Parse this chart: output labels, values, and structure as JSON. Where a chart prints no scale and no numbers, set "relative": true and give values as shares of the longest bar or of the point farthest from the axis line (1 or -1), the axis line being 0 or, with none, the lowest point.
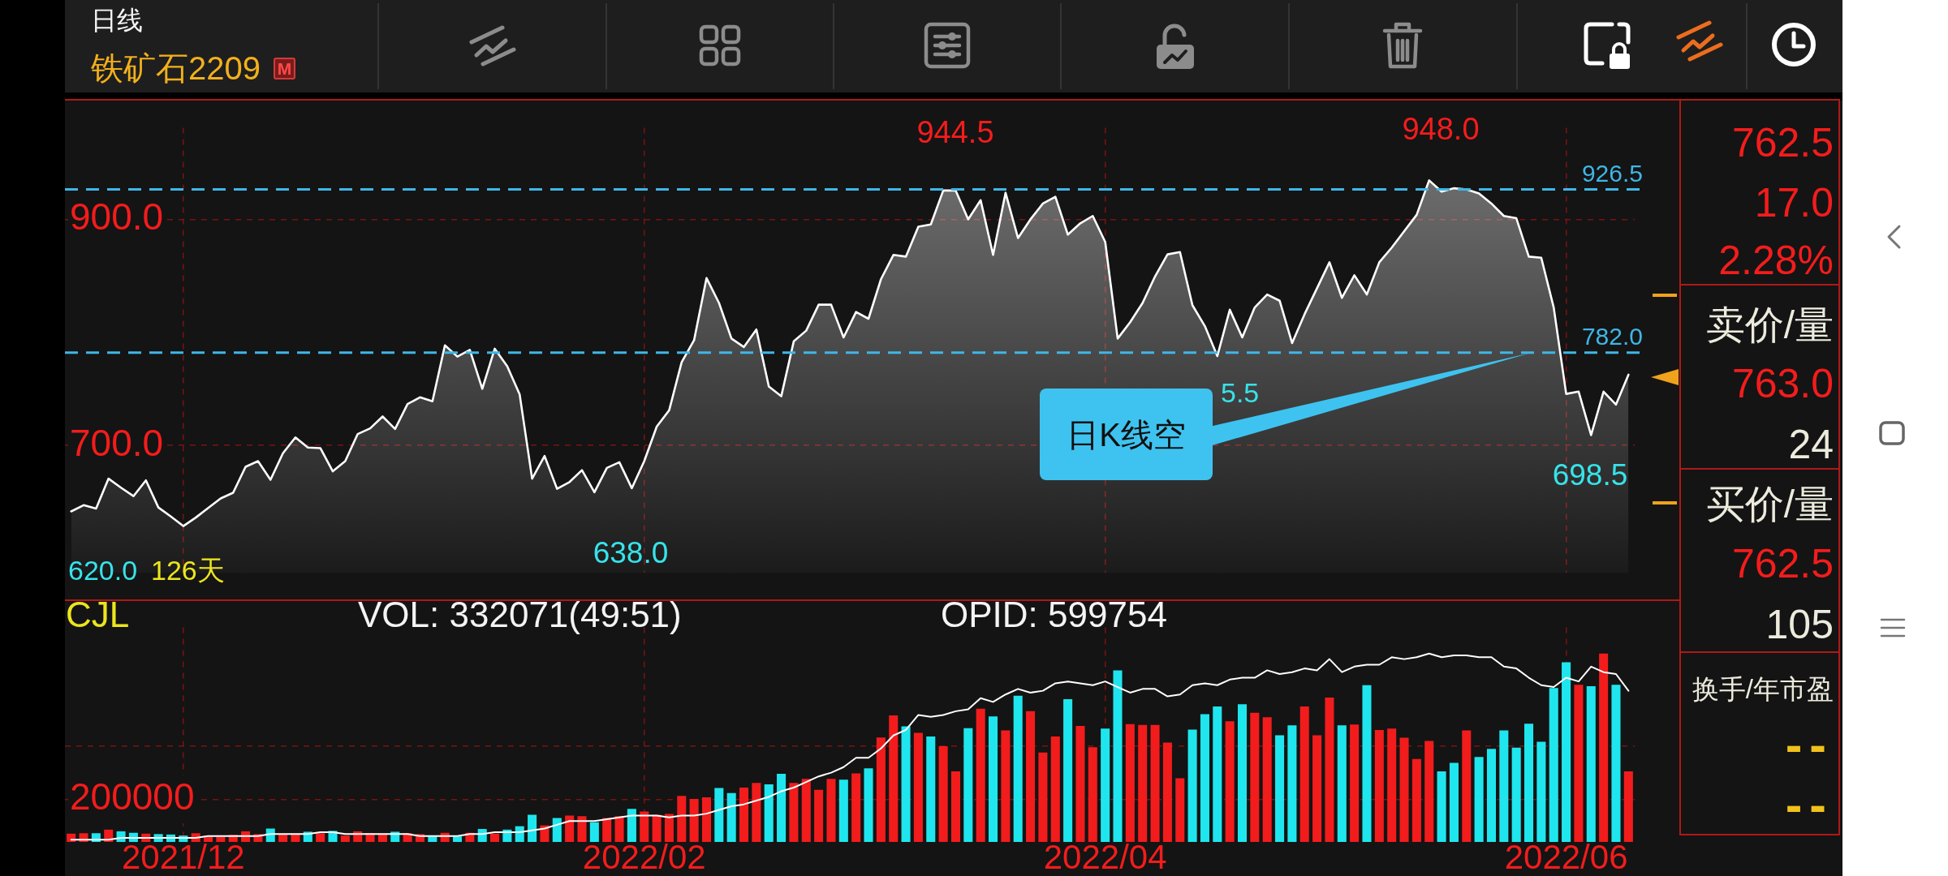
{
  "chart_data": [
    {
      "type": "area",
      "title": "日线",
      "subtitle": "铁矿石2209",
      "categories": [
        null,
        null,
        null,
        null,
        null,
        null,
        null,
        null,
        null,
        "2021/12",
        null,
        null,
        null,
        null,
        null,
        null,
        null,
        null,
        null,
        null,
        null,
        null,
        null,
        null,
        null,
        null,
        null,
        null,
        null,
        null,
        null,
        null,
        null,
        null,
        null,
        null,
        null,
        null,
        null,
        null,
        null,
        null,
        null,
        null,
        null,
        null,
        "2022/02",
        null,
        null,
        null,
        null,
        null,
        null,
        null,
        null,
        null,
        null,
        null,
        null,
        null,
        null,
        null,
        null,
        null,
        null,
        null,
        null,
        null,
        null,
        null,
        null,
        null,
        null,
        null,
        null,
        null,
        null,
        null,
        null,
        null,
        null,
        null,
        null,
        "2022/04",
        null,
        null,
        null,
        null,
        null,
        null,
        null,
        null,
        null,
        null,
        null,
        null,
        null,
        null,
        null,
        null,
        null,
        null,
        null,
        null,
        null,
        null,
        null,
        null,
        null,
        null,
        null,
        null,
        null,
        null,
        null,
        null,
        null,
        null,
        null,
        null,
        "2022/06",
        null,
        null,
        null,
        null,
        null
      ],
      "series": [
        {
          "color": "#ffffff",
          "values": [
            641.5,
            647,
            644,
            670.5,
            662.5,
            655,
            669,
            645,
            637,
            628.5,
            636,
            644.5,
            653,
            658,
            681,
            686,
            669.5,
            693,
            707,
            698,
            697.5,
            677,
            686,
            710,
            715,
            725.5,
            714.5,
            736.5,
            742.5,
            739,
            788.5,
            778.5,
            784.5,
            750,
            785.5,
            770,
            745,
            670.5,
            690.5,
            661.5,
            667.5,
            678,
            658.5,
            680,
            685,
            662,
            686,
            716.5,
            731,
            773.5,
            793,
            848,
            826,
            794.5,
            787,
            802.5,
            752,
            743.5,
            792,
            801.5,
            824.5,
            824.5,
            795.5,
            818,
            812,
            847,
            868.5,
            867,
            893.5,
            895.5,
            925.5,
            925.5,
            900,
            917,
            868.5,
            923.5,
            883.5,
            900,
            914,
            920,
            886.5,
            896.5,
            903,
            880,
            794.5,
            809,
            826,
            849.5,
            869,
            871,
            824,
            805.5,
            779,
            820,
            795.5,
            822,
            833.5,
            828,
            790.5,
            816,
            839,
            862,
            830.5,
            850.5,
            833.5,
            862,
            875,
            889.5,
            904,
            934.5,
            924.5,
            927.5,
            926.5,
            923,
            914,
            903,
            901,
            867,
            866,
            822,
            745.5,
            747.5,
            709,
            747.5,
            736,
            762.5
          ]
        }
      ],
      "ylim": [
        587,
        981
      ],
      "yticks": [
        {
          "value": 700,
          "label": "700.0"
        },
        {
          "value": 900,
          "label": "900.0"
        }
      ],
      "grid": true,
      "tick_labels": "y",
      "ref_lines": [
        {
          "axis": "y",
          "value": 926.5,
          "label": "926.5",
          "color": "#3fb6e6",
          "line_style": "dashed"
        },
        {
          "axis": "y",
          "value": 782.0,
          "label": "782.0",
          "color": "#3fb6e6",
          "line_style": "dashed"
        }
      ],
      "annotations": [
        "M",
        "944.5",
        "948.0",
        "638.0",
        "698.5",
        "5.5",
        "620.0",
        "126天",
        "日K线空"
      ]
    },
    {
      "type": "bar",
      "categories": [
        null,
        null,
        null,
        null,
        null,
        null,
        null,
        null,
        null,
        "2021/12",
        null,
        null,
        null,
        null,
        null,
        null,
        null,
        null,
        null,
        null,
        null,
        null,
        null,
        null,
        null,
        null,
        null,
        null,
        null,
        null,
        null,
        null,
        null,
        null,
        null,
        null,
        null,
        null,
        null,
        null,
        null,
        null,
        null,
        null,
        null,
        null,
        "2022/02",
        null,
        null,
        null,
        null,
        null,
        null,
        null,
        null,
        null,
        null,
        null,
        null,
        null,
        null,
        null,
        null,
        null,
        null,
        null,
        null,
        null,
        null,
        null,
        null,
        null,
        null,
        null,
        null,
        null,
        null,
        null,
        null,
        null,
        null,
        null,
        null,
        "2022/04",
        null,
        null,
        null,
        null,
        null,
        null,
        null,
        null,
        null,
        null,
        null,
        null,
        null,
        null,
        null,
        null,
        null,
        null,
        null,
        null,
        null,
        null,
        null,
        null,
        null,
        null,
        null,
        null,
        null,
        null,
        null,
        null,
        null,
        null,
        null,
        null,
        "2022/06",
        null,
        null,
        null,
        null,
        null
      ],
      "series": [
        {
          "colors": [
            "#f21c1c",
            "#f21c1c",
            "#1fe6ee",
            "#f21c1c",
            "#1fe6ee",
            "#1fe6ee",
            "#f21c1c",
            "#1fe6ee",
            "#1fe6ee",
            "#1fe6ee",
            "#f21c1c",
            "#f21c1c",
            "#f21c1c",
            "#f21c1c",
            "#f21c1c",
            "#f21c1c",
            "#1fe6ee",
            "#f21c1c",
            "#f21c1c",
            "#1fe6ee",
            "#f21c1c",
            "#1fe6ee",
            "#f21c1c",
            "#f21c1c",
            "#f21c1c",
            "#f21c1c",
            "#1fe6ee",
            "#f21c1c",
            "#f21c1c",
            "#1fe6ee",
            "#f21c1c",
            "#1fe6ee",
            "#f21c1c",
            "#1fe6ee",
            "#f21c1c",
            "#1fe6ee",
            "#1fe6ee",
            "#1fe6ee",
            "#f21c1c",
            "#1fe6ee",
            "#f21c1c",
            "#f21c1c",
            "#1fe6ee",
            "#f21c1c",
            "#f21c1c",
            "#1fe6ee",
            "#f21c1c",
            "#f21c1c",
            "#f21c1c",
            "#f21c1c",
            "#f21c1c",
            "#f21c1c",
            "#1fe6ee",
            "#1fe6ee",
            "#f21c1c",
            "#f21c1c",
            "#1fe6ee",
            "#1fe6ee",
            "#f21c1c",
            "#f21c1c",
            "#f21c1c",
            "#f21c1c",
            "#1fe6ee",
            "#f21c1c",
            "#1fe6ee",
            "#f21c1c",
            "#f21c1c",
            "#1fe6ee",
            "#f21c1c",
            "#1fe6ee",
            "#f21c1c",
            "#f21c1c",
            "#1fe6ee",
            "#f21c1c",
            "#1fe6ee",
            "#f21c1c",
            "#1fe6ee",
            "#f21c1c",
            "#f21c1c",
            "#f21c1c",
            "#1fe6ee",
            "#f21c1c",
            "#f21c1c",
            "#1fe6ee",
            "#1fe6ee",
            "#f21c1c",
            "#f21c1c",
            "#f21c1c",
            "#f21c1c",
            "#f21c1c",
            "#1fe6ee",
            "#1fe6ee",
            "#1fe6ee",
            "#f21c1c",
            "#1fe6ee",
            "#f21c1c",
            "#f21c1c",
            "#1fe6ee",
            "#1fe6ee",
            "#f21c1c",
            "#f21c1c",
            "#f21c1c",
            "#1fe6ee",
            "#f21c1c",
            "#1fe6ee",
            "#f21c1c",
            "#f21c1c",
            "#f21c1c",
            "#f21c1c",
            "#f21c1c",
            "#1fe6ee",
            "#1fe6ee",
            "#f21c1c",
            "#1fe6ee",
            "#1fe6ee",
            "#1fe6ee",
            "#1fe6ee",
            "#1fe6ee",
            "#1fe6ee",
            "#1fe6ee",
            "#1fe6ee",
            "#f21c1c",
            "#1fe6ee",
            "#f21c1c",
            "#1fe6ee",
            "#f21c1c"
          ],
          "values": [
            39000,
            41000,
            41000,
            58000,
            50000,
            43000,
            39000,
            37000,
            35000,
            30000,
            41000,
            28000,
            28000,
            33000,
            50000,
            37000,
            63000,
            37000,
            37000,
            48000,
            41000,
            52000,
            30000,
            50000,
            41000,
            39000,
            48000,
            41000,
            37000,
            26000,
            43000,
            26000,
            43000,
            61000,
            39000,
            58000,
            74000,
            128000,
            78000,
            113000,
            124000,
            121000,
            93000,
            113000,
            121000,
            156000,
            143000,
            128000,
            132000,
            217000,
            202000,
            210000,
            254000,
            230000,
            256000,
            278000,
            271000,
            321000,
            278000,
            297000,
            245000,
            297000,
            293000,
            323000,
            347000,
            492000,
            596000,
            544000,
            514000,
            497000,
            451000,
            332000,
            536000,
            627000,
            591000,
            525000,
            689000,
            616000,
            421000,
            497000,
            672000,
            546000,
            446000,
            534000,
            808000,
            555000,
            551000,
            551000,
            468000,
            300000,
            529000,
            602000,
            638000,
            568000,
            648000,
            608000,
            587000,
            502000,
            549000,
            638000,
            502000,
            680000,
            549000,
            553000,
            738000,
            527000,
            534000,
            491000,
            391000,
            476000,
            332000,
            372000,
            525000,
            400000,
            438000,
            525000,
            444000,
            557000,
            472000,
            725000,
            846000,
            740000,
            733000,
            887000,
            740000,
            332071
          ]
        }
      ],
      "ylim": [
        0,
        1010000
      ],
      "yticks": [
        200000,
        {
          "value": 450000,
          "label": null
        }
      ],
      "grid": true,
      "annotations": [
        "CJL",
        "VOL: 332071(49:51)"
      ]
    },
    {
      "type": "line",
      "relative": true,
      "tick_labels": false,
      "categories": [
        null,
        null,
        null,
        null,
        null,
        null,
        null,
        null,
        null,
        "2021/12",
        null,
        null,
        null,
        null,
        null,
        null,
        null,
        null,
        null,
        null,
        null,
        null,
        null,
        null,
        null,
        null,
        null,
        null,
        null,
        null,
        null,
        null,
        null,
        null,
        null,
        null,
        null,
        null,
        null,
        null,
        null,
        null,
        null,
        null,
        null,
        null,
        "2022/02",
        null,
        null,
        null,
        null,
        null,
        null,
        null,
        null,
        null,
        null,
        null,
        null,
        null,
        null,
        null,
        null,
        null,
        null,
        null,
        null,
        null,
        null,
        null,
        null,
        null,
        null,
        null,
        null,
        null,
        null,
        null,
        null,
        null,
        null,
        null,
        null,
        "2022/04",
        null,
        null,
        null,
        null,
        null,
        null,
        null,
        null,
        null,
        null,
        null,
        null,
        null,
        null,
        null,
        null,
        null,
        null,
        null,
        null,
        null,
        null,
        null,
        null,
        null,
        null,
        null,
        null,
        null,
        null,
        null,
        null,
        null,
        null,
        null,
        null,
        "2022/06",
        null,
        null,
        null,
        null,
        null
      ],
      "series": [
        {
          "color": "#ffffff",
          "values": [
            0,
            0,
            0,
            0,
            0.01,
            0.01,
            0.01,
            0.01,
            0.01,
            0.01,
            0.01,
            0.02,
            0.02,
            0.02,
            0.02,
            0.02,
            0.03,
            0.03,
            0.03,
            0.03,
            0.04,
            0.04,
            0.03,
            0.03,
            0.03,
            0.03,
            0.03,
            0.03,
            0.02,
            0.02,
            0.02,
            0.02,
            0.03,
            0.03,
            0.04,
            0.04,
            0.04,
            0.05,
            0.06,
            0.08,
            0.1,
            0.1,
            0.1,
            0.11,
            0.12,
            0.13,
            0.13,
            0.13,
            0.12,
            0.13,
            0.13,
            0.14,
            0.16,
            0.18,
            0.19,
            0.21,
            0.23,
            0.26,
            0.28,
            0.31,
            0.34,
            0.36,
            0.39,
            0.44,
            0.44,
            0.49,
            0.56,
            0.59,
            0.67,
            0.66,
            0.67,
            0.69,
            0.7,
            0.76,
            0.74,
            0.78,
            0.81,
            0.79,
            0.8,
            0.84,
            0.85,
            0.84,
            0.83,
            0.85,
            0.82,
            0.79,
            0.81,
            0.81,
            0.77,
            0.78,
            0.83,
            0.84,
            0.83,
            0.86,
            0.87,
            0.87,
            0.91,
            0.89,
            0.9,
            0.92,
            0.91,
            0.97,
            0.9,
            0.93,
            0.94,
            0.94,
            0.98,
            0.97,
            0.98,
            1,
            0.98,
            0.99,
            0.99,
            0.98,
            0.98,
            0.93,
            0.92,
            0.87,
            0.83,
            0.82,
            0.87,
            0.85,
            0.93,
            0.9,
            0.89,
            0.8
          ]
        }
      ],
      "annotations": [
        "OPID: 599754"
      ]
    },
    {
      "type": "other",
      "annotations": [
        "762.5",
        "17.0",
        "2.28%",
        "卖价/量",
        "763.0",
        "24",
        "买价/量",
        "762.5",
        "105",
        "换手/年市盈",
        "--",
        "--"
      ]
    }
  ]
}
